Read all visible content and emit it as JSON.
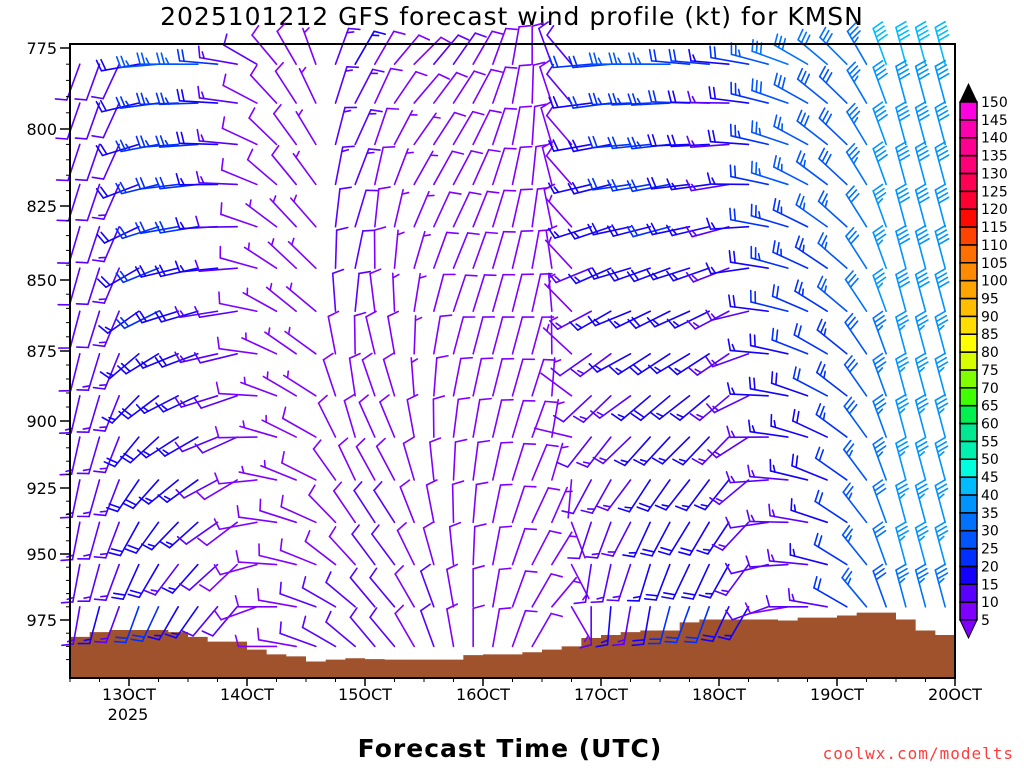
{
  "chart_data": {
    "type": "wind-barb",
    "title": "2025101212 GFS forecast wind profile (kt) for KMSN",
    "xlabel": "Forecast Time (UTC)",
    "ylabel": "",
    "credit": "coolwx.com/modelts",
    "year_label": "2025",
    "ylim": [
      773.5,
      997
    ],
    "yticks": [
      "775",
      "800",
      "825",
      "850",
      "875",
      "900",
      "925",
      "950",
      "975"
    ],
    "xticks": [
      "13OCT",
      "14OCT",
      "15OCT",
      "16OCT",
      "17OCT",
      "18OCT",
      "19OCT",
      "20OCT"
    ],
    "xtick_hours": [
      12,
      36,
      60,
      84,
      108,
      132,
      156,
      180
    ],
    "xlim_hours": [
      0,
      180
    ],
    "time_start": "2025-10-12 12Z",
    "times_hours": [
      2,
      6,
      10,
      14,
      18,
      22,
      26,
      30,
      34,
      38,
      42,
      46,
      50,
      54,
      58,
      62,
      66,
      70,
      74,
      78,
      82,
      86,
      90,
      94,
      98,
      102,
      106,
      110,
      114,
      118,
      122,
      126,
      130,
      134,
      138,
      142,
      146,
      150,
      154,
      158,
      162,
      166,
      170,
      174,
      178
    ],
    "levels_hpa": [
      780,
      792,
      805,
      818,
      832,
      846,
      861,
      876,
      891,
      906,
      922,
      938,
      954,
      970,
      985
    ],
    "upper_level_hpa": 780,
    "lower_level_hpa": 970,
    "upper_dir_deg": [
      200,
      200,
      205,
      260,
      265,
      270,
      270,
      275,
      280,
      300,
      320,
      330,
      340,
      20,
      30,
      30,
      40,
      45,
      40,
      35,
      30,
      20,
      10,
      0,
      340,
      320,
      265,
      265,
      270,
      270,
      270,
      275,
      275,
      275,
      280,
      285,
      290,
      300,
      310,
      315,
      330,
      340,
      345,
      345,
      345
    ],
    "upper_speed_kt": [
      10,
      10,
      12,
      20,
      25,
      25,
      25,
      20,
      15,
      10,
      8,
      8,
      5,
      15,
      15,
      8,
      8,
      8,
      10,
      10,
      8,
      8,
      8,
      8,
      10,
      12,
      20,
      22,
      25,
      25,
      25,
      22,
      20,
      15,
      20,
      25,
      30,
      30,
      30,
      30,
      35,
      40,
      40,
      40,
      40
    ],
    "lower_dir_deg": [
      190,
      195,
      200,
      200,
      205,
      210,
      215,
      220,
      220,
      250,
      270,
      280,
      290,
      300,
      310,
      320,
      320,
      330,
      340,
      350,
      0,
      10,
      20,
      30,
      40,
      150,
      180,
      185,
      190,
      190,
      195,
      200,
      200,
      205,
      210,
      250,
      260,
      270,
      280,
      300,
      320,
      340,
      345,
      345,
      345
    ],
    "lower_speed_kt": [
      15,
      15,
      15,
      20,
      20,
      15,
      15,
      10,
      10,
      8,
      8,
      8,
      10,
      10,
      10,
      12,
      12,
      10,
      10,
      8,
      8,
      8,
      8,
      8,
      5,
      5,
      12,
      15,
      15,
      18,
      20,
      20,
      20,
      18,
      15,
      10,
      10,
      12,
      15,
      20,
      25,
      30,
      35,
      35,
      35
    ],
    "surface_pressure_hpa": [
      981.4,
      979.6,
      978.8,
      978.8,
      978.8,
      979.6,
      981.4,
      983.2,
      983.2,
      986.2,
      988,
      988.8,
      990.7,
      990,
      989.5,
      989.8,
      990,
      990,
      990,
      990,
      988.3,
      988,
      988,
      987.2,
      986.2,
      985,
      981.8,
      980.7,
      979.6,
      979,
      979,
      975.9,
      974.8,
      974.8,
      974.8,
      974.8,
      975.2,
      974.1,
      974.1,
      973.3,
      972.2,
      972.2,
      974.8,
      979,
      980.7
    ],
    "terrain_color": "#a0522d",
    "colorbar": {
      "labels": [
        "5",
        "10",
        "15",
        "20",
        "25",
        "30",
        "35",
        "40",
        "45",
        "50",
        "55",
        "60",
        "65",
        "70",
        "75",
        "80",
        "85",
        "90",
        "95",
        "100",
        "105",
        "110",
        "115",
        "120",
        "125",
        "130",
        "135",
        "140",
        "145",
        "150"
      ],
      "colors": [
        "#8000ff",
        "#5a00ff",
        "#1400ff",
        "#0030ff",
        "#0055ff",
        "#0072ff",
        "#0094ff",
        "#00bcff",
        "#00ffdd",
        "#00f0b0",
        "#00e890",
        "#00f050",
        "#40ff00",
        "#80ff00",
        "#d8ff00",
        "#ffff00",
        "#ffdd00",
        "#ffbf00",
        "#ffa500",
        "#ff8c00",
        "#ff7000",
        "#ff4400",
        "#ff0a00",
        "#ff0033",
        "#ff0055",
        "#ff0077",
        "#ff0090",
        "#ff00b0",
        "#ff00e0"
      ],
      "below_color": "#8000ff",
      "above_color": "#000000"
    }
  }
}
